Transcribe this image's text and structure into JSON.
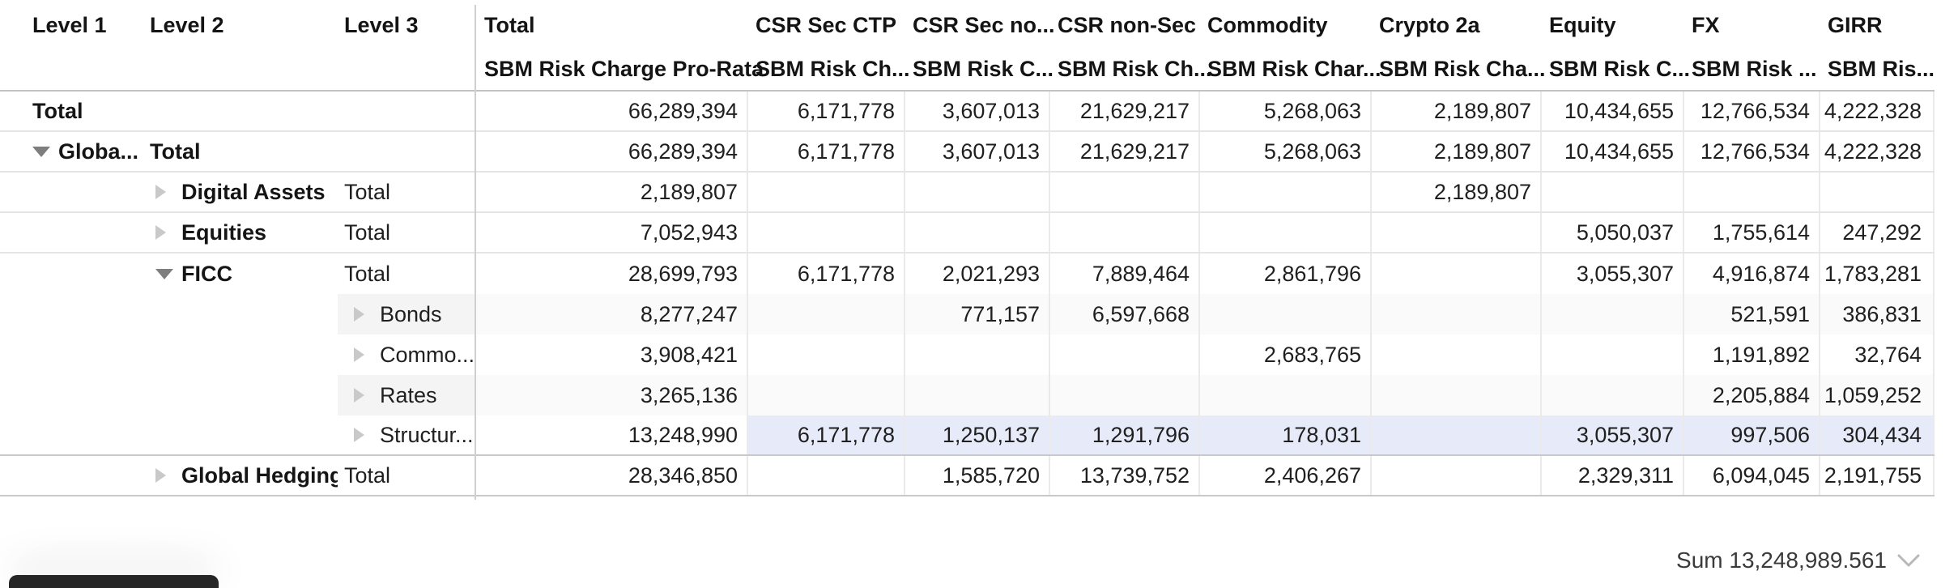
{
  "table": {
    "columns": [
      {
        "key": "level1",
        "label": "Level 1",
        "measure": ""
      },
      {
        "key": "level2",
        "label": "Level 2",
        "measure": ""
      },
      {
        "key": "level3",
        "label": "Level 3",
        "measure": ""
      },
      {
        "key": "total",
        "label": "Total",
        "measure": "SBM Risk Charge Pro-Rata"
      },
      {
        "key": "csr_sec_ctp",
        "label": "CSR Sec CTP",
        "measure": "SBM Risk Ch..."
      },
      {
        "key": "csr_sec_non_ctp",
        "label": "CSR Sec no...",
        "measure": "SBM Risk C..."
      },
      {
        "key": "csr_non_sec",
        "label": "CSR non-Sec",
        "measure": "SBM Risk Ch..."
      },
      {
        "key": "commodity",
        "label": "Commodity",
        "measure": "SBM Risk Char..."
      },
      {
        "key": "crypto_2a",
        "label": "Crypto 2a",
        "measure": "SBM Risk Cha..."
      },
      {
        "key": "equity",
        "label": "Equity",
        "measure": "SBM Risk C..."
      },
      {
        "key": "fx",
        "label": "FX",
        "measure": "SBM Risk ..."
      },
      {
        "key": "girr",
        "label": "GIRR",
        "measure": "SBM Ris..."
      }
    ],
    "rows": [
      {
        "level1": {
          "label": "Total",
          "bold": true
        },
        "level2": null,
        "level3": null,
        "border": "light",
        "values": {
          "total": "66,289,394",
          "csr_sec_ctp": "6,171,778",
          "csr_sec_non_ctp": "3,607,013",
          "csr_non_sec": "21,629,217",
          "commodity": "5,268,063",
          "crypto_2a": "2,189,807",
          "equity": "10,434,655",
          "fx": "12,766,534",
          "girr": "4,222,328"
        }
      },
      {
        "level1": {
          "arrow": "expanded",
          "label": "Globa...",
          "bold": true
        },
        "level2": {
          "label": "Total",
          "bold": true
        },
        "level3": null,
        "border": "light",
        "values": {
          "total": "66,289,394",
          "csr_sec_ctp": "6,171,778",
          "csr_sec_non_ctp": "3,607,013",
          "csr_non_sec": "21,629,217",
          "commodity": "5,268,063",
          "crypto_2a": "2,189,807",
          "equity": "10,434,655",
          "fx": "12,766,534",
          "girr": "4,222,328"
        }
      },
      {
        "level1": null,
        "level2": {
          "arrow": "collapsed",
          "label": "Digital Assets",
          "bold": true
        },
        "level3": {
          "label": "Total"
        },
        "border": "light",
        "values": {
          "total": "2,189,807",
          "crypto_2a": "2,189,807"
        }
      },
      {
        "level1": null,
        "level2": {
          "arrow": "collapsed",
          "label": "Equities",
          "bold": true
        },
        "level3": {
          "label": "Total"
        },
        "border": "light",
        "values": {
          "total": "7,052,943",
          "equity": "5,050,037",
          "fx": "1,755,614",
          "girr": "247,292"
        }
      },
      {
        "level1": null,
        "level2": {
          "arrow": "expanded",
          "label": "FICC",
          "bold": true
        },
        "level3": {
          "label": "Total"
        },
        "border": "none",
        "values": {
          "total": "28,699,793",
          "csr_sec_ctp": "6,171,778",
          "csr_sec_non_ctp": "2,021,293",
          "csr_non_sec": "7,889,464",
          "commodity": "2,861,796",
          "equity": "3,055,307",
          "fx": "4,916,874",
          "girr": "1,783,281"
        }
      },
      {
        "level1": null,
        "level2": null,
        "level3": {
          "arrow": "collapsed",
          "label": "Bonds"
        },
        "stripe": true,
        "border": "none",
        "values": {
          "total": "8,277,247",
          "csr_sec_non_ctp": "771,157",
          "csr_non_sec": "6,597,668",
          "fx": "521,591",
          "girr": "386,831"
        }
      },
      {
        "level1": null,
        "level2": null,
        "level3": {
          "arrow": "collapsed",
          "label": "Commo..."
        },
        "border": "none",
        "values": {
          "total": "3,908,421",
          "commodity": "2,683,765",
          "fx": "1,191,892",
          "girr": "32,764"
        }
      },
      {
        "level1": null,
        "level2": null,
        "level3": {
          "arrow": "collapsed",
          "label": "Rates"
        },
        "stripe": true,
        "border": "none",
        "values": {
          "total": "3,265,136",
          "fx": "2,205,884",
          "girr": "1,059,252"
        }
      },
      {
        "level1": null,
        "level2": null,
        "level3": {
          "arrow": "collapsed",
          "label": "Structur..."
        },
        "highlight": true,
        "border": "strong",
        "values": {
          "total": "13,248,990",
          "csr_sec_ctp": "6,171,778",
          "csr_sec_non_ctp": "1,250,137",
          "csr_non_sec": "1,291,796",
          "commodity": "178,031",
          "equity": "3,055,307",
          "fx": "997,506",
          "girr": "304,434"
        }
      },
      {
        "level1": null,
        "level2": {
          "arrow": "collapsed",
          "label": "Global Hedging",
          "bold": true
        },
        "level3": {
          "label": "Total"
        },
        "border": "strong",
        "values": {
          "total": "28,346,850",
          "csr_sec_non_ctp": "1,585,720",
          "csr_non_sec": "13,739,752",
          "commodity": "2,406,267",
          "equity": "2,329,311",
          "fx": "6,094,045",
          "girr": "2,191,755"
        }
      }
    ]
  },
  "footer": {
    "summary_label": "Sum 13,248,989.561"
  },
  "colors": {
    "selection_highlight": "#e7ebf9",
    "stripe_row": "#fafafa",
    "stripe_level3_cell": "#f4f4f4",
    "overlay_panel": "#262626"
  }
}
